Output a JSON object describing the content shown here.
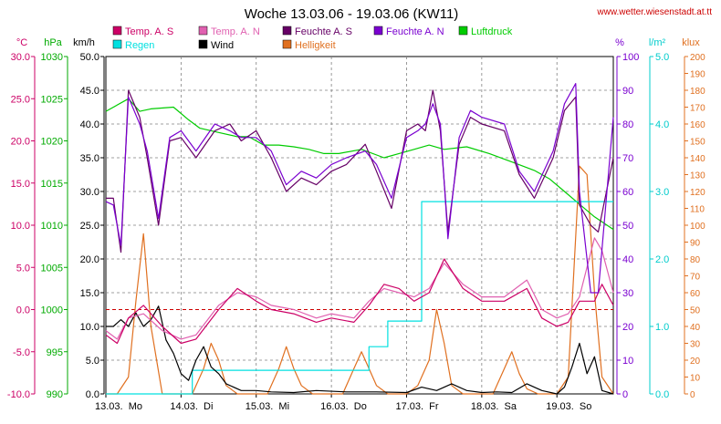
{
  "title": "Woche 13.03.06 - 19.03.06 (KW11)",
  "source_url": "www.wetter.wiesenstadt.at.tt",
  "colors": {
    "temp_s": "#cc0066",
    "temp_n": "#e060b0",
    "feuchte_s": "#660066",
    "feuchte_n": "#7a00d0",
    "luftdruck": "#00cc00",
    "regen": "#00e0e0",
    "wind": "#000000",
    "helligkeit": "#e07020",
    "axis_celsius": "#cc0066",
    "axis_hpa": "#00aa00",
    "axis_kmh": "#000000",
    "axis_percent": "#7a00d0",
    "axis_rain": "#00cccc",
    "axis_klux": "#e07020",
    "grid": "#808080",
    "zero_line": "#cc0000"
  },
  "chart_data": {
    "type": "line",
    "title": "Woche 13.03.06 - 19.03.06 (KW11)",
    "x_tick_labels": [
      "13.03.  Mo",
      "14.03.  Di",
      "15.03.  Mi",
      "16.03.  Do",
      "17.03.  Fr",
      "18.03.  Sa",
      "19.03.  So"
    ],
    "axes": {
      "celsius": {
        "unit": "°C",
        "range": [
          -10,
          30
        ],
        "ticks": [
          "30.0",
          "25.0",
          "20.0",
          "15.0",
          "10.0",
          "5.0",
          "0.0",
          "-5.0",
          "-10.0"
        ]
      },
      "hpa": {
        "unit": "hPa",
        "range": [
          990,
          1030
        ],
        "ticks": [
          "1030",
          "1025",
          "1020",
          "1015",
          "1010",
          "1005",
          "1000",
          "995",
          "990"
        ]
      },
      "kmh": {
        "unit": "km/h",
        "range": [
          0,
          50
        ],
        "ticks": [
          "50.0",
          "45.0",
          "40.0",
          "35.0",
          "30.0",
          "25.0",
          "20.0",
          "15.0",
          "10.0",
          "5.0",
          "0.0"
        ]
      },
      "percent": {
        "unit": "%",
        "range": [
          0,
          100
        ],
        "ticks": [
          "100",
          "90",
          "80",
          "70",
          "60",
          "50",
          "40",
          "30",
          "20",
          "10",
          "0"
        ]
      },
      "rain": {
        "unit": "l/m²",
        "range": [
          0,
          5
        ],
        "ticks": [
          "5.0",
          "4.0",
          "3.0",
          "2.0",
          "1.0",
          "0.0"
        ]
      },
      "klux": {
        "unit": "klux",
        "range": [
          0,
          200
        ],
        "ticks": [
          "200",
          "190",
          "180",
          "170",
          "160",
          "150",
          "140",
          "130",
          "120",
          "110",
          "100",
          "90",
          "80",
          "70",
          "60",
          "50",
          "40",
          "30",
          "20",
          "10",
          "0"
        ]
      }
    },
    "grid": true,
    "legend": [
      {
        "key": "temp_s",
        "label": "Temp. A. S"
      },
      {
        "key": "temp_n",
        "label": "Temp. A. N"
      },
      {
        "key": "feuchte_s",
        "label": "Feuchte A. S"
      },
      {
        "key": "feuchte_n",
        "label": "Feuchte A. N"
      },
      {
        "key": "luftdruck",
        "label": "Luftdruck"
      },
      {
        "key": "regen",
        "label": "Regen"
      },
      {
        "key": "wind",
        "label": "Wind"
      },
      {
        "key": "helligkeit",
        "label": "Helligkeit"
      }
    ],
    "series": [
      {
        "key": "temp_s",
        "name": "Temp. A. S",
        "axis": "celsius",
        "x": [
          0,
          0.15,
          0.3,
          0.5,
          0.75,
          1.0,
          1.2,
          1.5,
          1.75,
          2.0,
          2.2,
          2.5,
          2.8,
          3.0,
          3.3,
          3.5,
          3.7,
          3.9,
          4.1,
          4.3,
          4.5,
          4.75,
          5.0,
          5.3,
          5.6,
          5.8,
          6.0,
          6.15,
          6.3,
          6.5,
          6.6,
          6.75
        ],
        "y": [
          -3,
          -4,
          -1,
          0.5,
          -2,
          -4,
          -3.5,
          0,
          2.5,
          1,
          0,
          -0.5,
          -1.5,
          -1,
          -1.5,
          0.5,
          3,
          2.5,
          1,
          2,
          6,
          2.5,
          1,
          1,
          2.5,
          -1,
          -2,
          -1.5,
          1,
          1,
          3,
          0.5
        ]
      },
      {
        "key": "temp_n",
        "name": "Temp. A. N",
        "axis": "celsius",
        "x": [
          0,
          0.15,
          0.3,
          0.5,
          0.75,
          1.0,
          1.2,
          1.5,
          1.75,
          2.0,
          2.2,
          2.5,
          2.8,
          3.0,
          3.3,
          3.5,
          3.7,
          3.9,
          4.1,
          4.3,
          4.5,
          4.75,
          5.0,
          5.3,
          5.6,
          5.8,
          6.0,
          6.15,
          6.3,
          6.5,
          6.6,
          6.75
        ],
        "y": [
          -2.5,
          -3.5,
          -1,
          -0.5,
          -2.5,
          -3.5,
          -3,
          0.5,
          2,
          1.5,
          0.5,
          0,
          -1,
          -0.5,
          -1,
          1,
          2.5,
          2,
          1.5,
          2.5,
          5.5,
          3,
          1.5,
          1.5,
          3.5,
          0,
          -1,
          -0.5,
          1.5,
          8.5,
          7,
          2
        ]
      },
      {
        "key": "feuchte_s",
        "name": "Feuchte A. S",
        "axis": "percent",
        "x": [
          0,
          0.1,
          0.2,
          0.3,
          0.45,
          0.55,
          0.7,
          0.85,
          1.0,
          1.2,
          1.45,
          1.65,
          1.8,
          2.0,
          2.2,
          2.4,
          2.6,
          2.8,
          3.0,
          3.2,
          3.45,
          3.6,
          3.8,
          4.0,
          4.15,
          4.25,
          4.35,
          4.45,
          4.55,
          4.7,
          4.85,
          5.0,
          5.3,
          5.5,
          5.7,
          5.95,
          6.1,
          6.25,
          6.3,
          6.45,
          6.55,
          6.75
        ],
        "y": [
          58,
          58,
          42,
          90,
          82,
          70,
          50,
          75,
          76,
          70,
          78,
          80,
          75,
          78,
          70,
          60,
          64,
          62,
          66,
          68,
          74,
          66,
          55,
          78,
          80,
          78,
          90,
          78,
          48,
          74,
          82,
          80,
          78,
          65,
          58,
          70,
          84,
          88,
          56,
          50,
          48,
          70
        ]
      },
      {
        "key": "feuchte_n",
        "name": "Feuchte A. N",
        "axis": "percent",
        "x": [
          0,
          0.1,
          0.2,
          0.3,
          0.45,
          0.55,
          0.7,
          0.85,
          1.0,
          1.2,
          1.45,
          1.65,
          1.8,
          2.0,
          2.2,
          2.4,
          2.6,
          2.8,
          3.0,
          3.2,
          3.45,
          3.6,
          3.8,
          4.0,
          4.15,
          4.25,
          4.35,
          4.45,
          4.55,
          4.7,
          4.85,
          5.0,
          5.3,
          5.5,
          5.7,
          5.95,
          6.1,
          6.25,
          6.3,
          6.45,
          6.55,
          6.75
        ],
        "y": [
          57,
          56,
          44,
          88,
          80,
          72,
          52,
          76,
          78,
          72,
          80,
          78,
          76,
          76,
          72,
          62,
          66,
          64,
          68,
          70,
          72,
          68,
          58,
          76,
          78,
          80,
          86,
          80,
          46,
          76,
          84,
          82,
          80,
          66,
          60,
          72,
          86,
          92,
          60,
          30,
          30,
          82
        ]
      },
      {
        "key": "luftdruck",
        "name": "Luftdruck",
        "axis": "hpa",
        "x": [
          0,
          0.3,
          0.45,
          0.6,
          0.9,
          1.1,
          1.25,
          1.5,
          1.75,
          1.9,
          2.1,
          2.3,
          2.5,
          2.7,
          2.9,
          3.1,
          3.4,
          3.7,
          3.9,
          4.1,
          4.3,
          4.5,
          4.8,
          5.1,
          5.4,
          5.7,
          5.9,
          6.1,
          6.3,
          6.5,
          6.75
        ],
        "y": [
          1023.5,
          1025,
          1023.5,
          1023.8,
          1024,
          1022.5,
          1021.5,
          1021,
          1020.5,
          1020.5,
          1019.5,
          1019.5,
          1019.3,
          1019,
          1018.5,
          1018.5,
          1019,
          1018,
          1018.5,
          1019,
          1019.5,
          1019,
          1019.3,
          1018.5,
          1017.5,
          1016.5,
          1015.5,
          1014,
          1012.5,
          1011,
          1009.5
        ]
      },
      {
        "key": "regen",
        "name": "Regen",
        "axis": "rain",
        "x": [
          0,
          1.15,
          1.15,
          3.5,
          3.5,
          3.75,
          3.75,
          4.2,
          4.2,
          4.25,
          4.25,
          6.75
        ],
        "y": [
          0,
          0,
          0.35,
          0.35,
          0.7,
          0.7,
          1.08,
          1.08,
          2.85,
          2.85,
          2.85,
          2.85
        ]
      },
      {
        "key": "wind",
        "name": "Wind",
        "axis": "kmh",
        "x": [
          0,
          0.1,
          0.2,
          0.3,
          0.4,
          0.5,
          0.6,
          0.7,
          0.8,
          0.9,
          1.0,
          1.1,
          1.2,
          1.3,
          1.4,
          1.5,
          1.6,
          1.8,
          2.0,
          2.2,
          2.5,
          2.8,
          3.2,
          3.6,
          4.0,
          4.2,
          4.4,
          4.6,
          4.8,
          5.0,
          5.2,
          5.4,
          5.6,
          5.8,
          6.0,
          6.1,
          6.2,
          6.3,
          6.4,
          6.5,
          6.6,
          6.75
        ],
        "y": [
          10,
          10,
          11,
          10,
          12,
          10,
          11,
          13,
          8,
          6,
          3,
          2,
          5,
          7,
          4,
          3,
          1.5,
          0.5,
          0.5,
          0.3,
          0.2,
          0.5,
          0.3,
          0.3,
          0.2,
          1,
          0.5,
          1.5,
          0.5,
          0.2,
          0.3,
          0.2,
          1.5,
          0.5,
          0,
          1,
          4,
          7.5,
          3,
          5.5,
          0.5,
          0
        ]
      },
      {
        "key": "helligkeit",
        "name": "Helligkeit",
        "axis": "klux",
        "x": [
          0,
          0.15,
          0.3,
          0.4,
          0.5,
          0.6,
          0.75,
          1.0,
          1.15,
          1.3,
          1.4,
          1.5,
          1.6,
          1.75,
          2.0,
          2.15,
          2.3,
          2.4,
          2.5,
          2.6,
          2.75,
          3.0,
          3.15,
          3.3,
          3.4,
          3.5,
          3.6,
          3.75,
          4.0,
          4.15,
          4.3,
          4.4,
          4.5,
          4.6,
          4.75,
          5.0,
          5.15,
          5.3,
          5.4,
          5.5,
          5.6,
          5.75,
          6.0,
          6.15,
          6.3,
          6.4,
          6.5,
          6.6,
          6.75
        ],
        "y": [
          0,
          0,
          10,
          55,
          95,
          40,
          0,
          0,
          0,
          15,
          30,
          20,
          5,
          0,
          0,
          0,
          15,
          28,
          15,
          5,
          0,
          0,
          0,
          15,
          25,
          15,
          5,
          0,
          0,
          5,
          20,
          50,
          30,
          5,
          0,
          0,
          0,
          15,
          25,
          12,
          3,
          0,
          0,
          10,
          135,
          130,
          60,
          10,
          0
        ]
      }
    ],
    "reference_lines": [
      {
        "axis": "celsius",
        "value": 0,
        "style": "dashed",
        "color": "#cc0000"
      }
    ]
  }
}
